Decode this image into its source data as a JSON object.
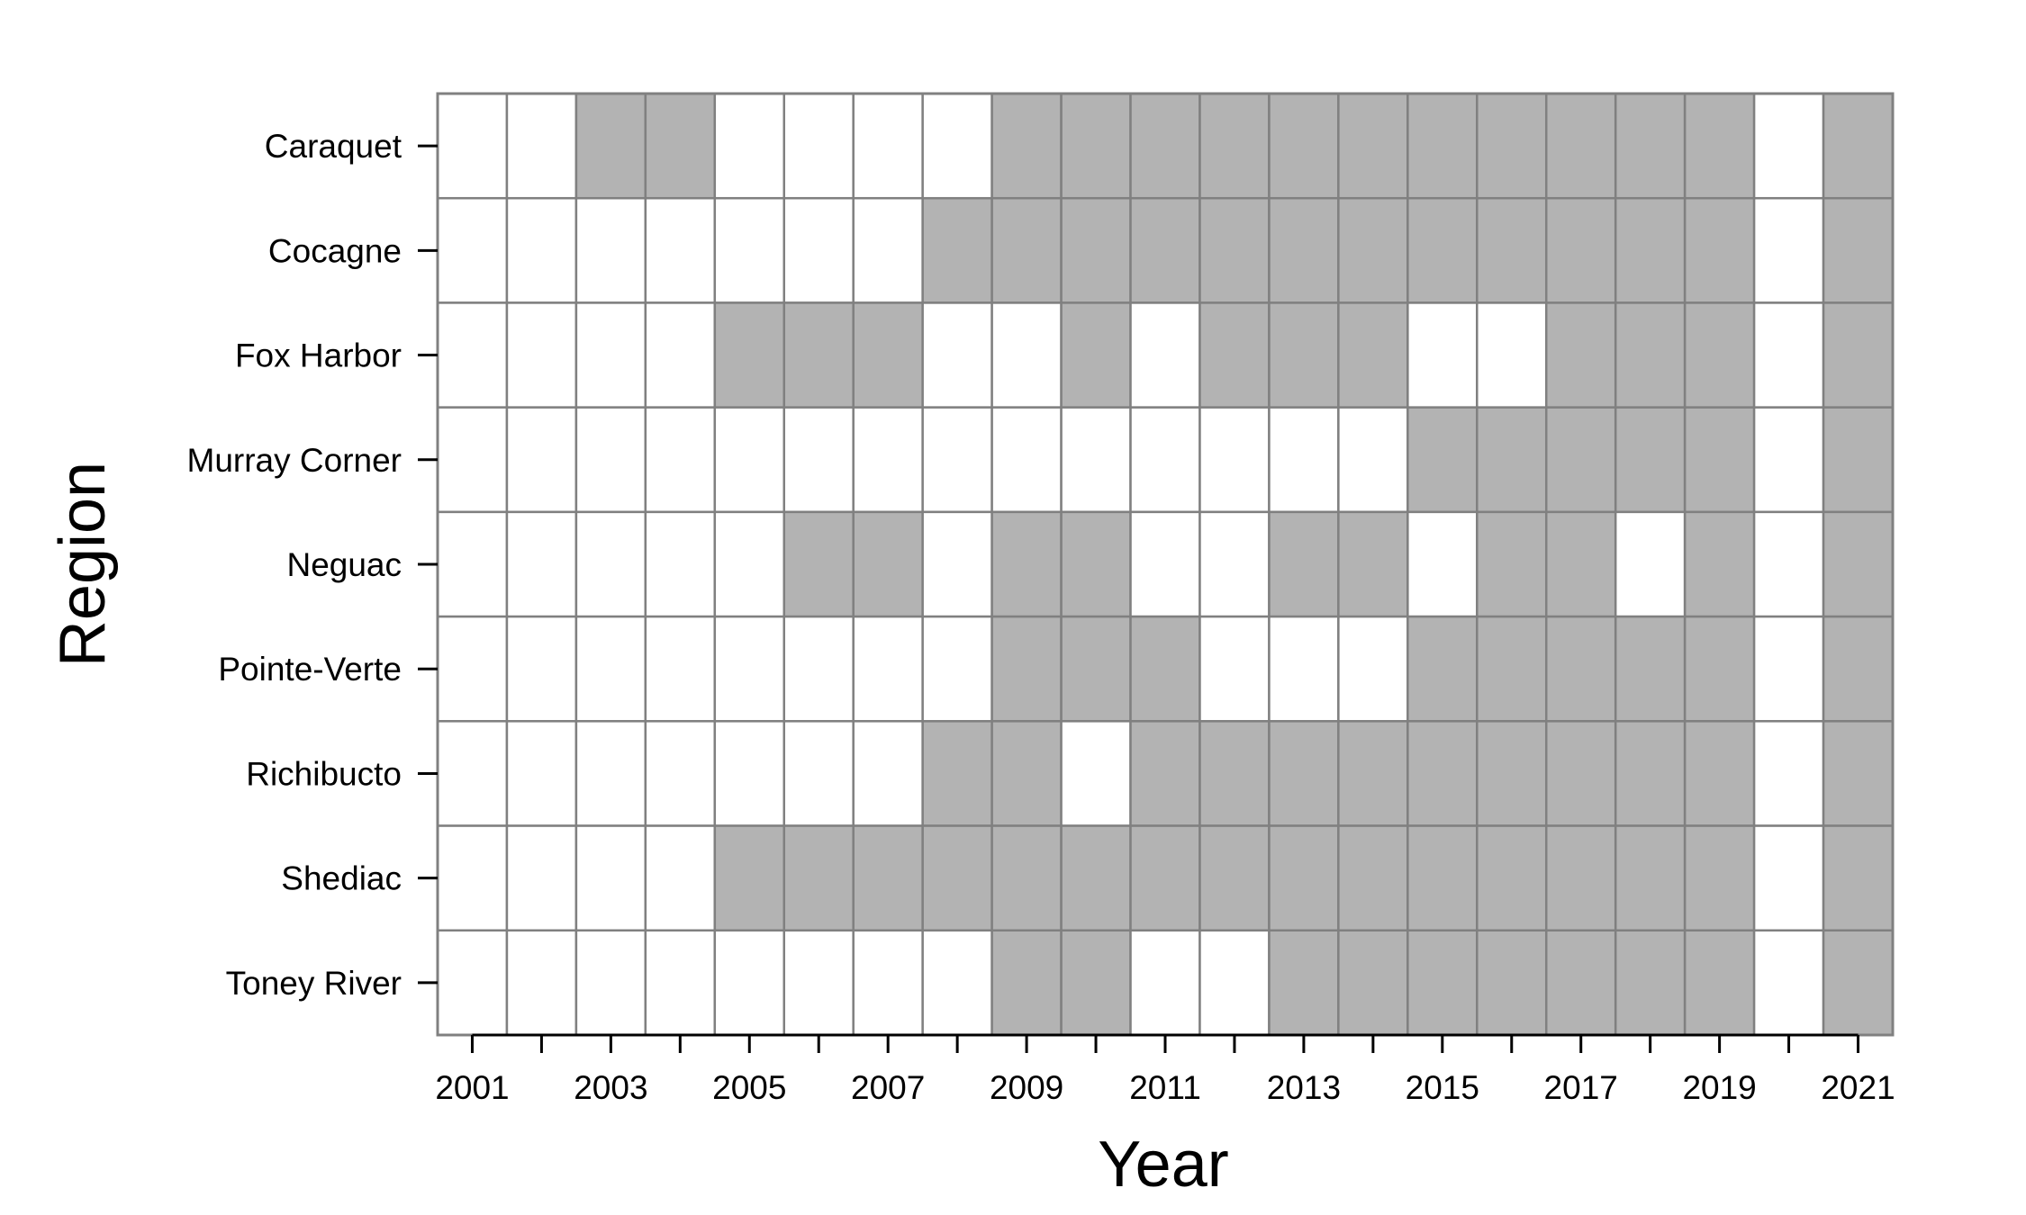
{
  "chart_data": {
    "type": "heatmap",
    "title": "",
    "xlabel": "Year",
    "ylabel": "Region",
    "x": [
      2001,
      2002,
      2003,
      2004,
      2005,
      2006,
      2007,
      2008,
      2009,
      2010,
      2011,
      2012,
      2013,
      2014,
      2015,
      2016,
      2017,
      2018,
      2019,
      2020,
      2021
    ],
    "x_tick_labels": [
      "2001",
      "2003",
      "2005",
      "2007",
      "2009",
      "2011",
      "2013",
      "2015",
      "2017",
      "2019",
      "2021"
    ],
    "y": [
      "Caraquet",
      "Cocagne",
      "Fox Harbor",
      "Murray Corner",
      "Neguac",
      "Pointe-Verte",
      "Richibucto",
      "Shediac",
      "Toney River"
    ],
    "values": [
      [
        0,
        0,
        1,
        1,
        0,
        0,
        0,
        0,
        1,
        1,
        1,
        1,
        1,
        1,
        1,
        1,
        1,
        1,
        1,
        0,
        1
      ],
      [
        0,
        0,
        0,
        0,
        0,
        0,
        0,
        1,
        1,
        1,
        1,
        1,
        1,
        1,
        1,
        1,
        1,
        1,
        1,
        0,
        1
      ],
      [
        0,
        0,
        0,
        0,
        1,
        1,
        1,
        0,
        0,
        1,
        0,
        1,
        1,
        1,
        0,
        0,
        1,
        1,
        1,
        0,
        1
      ],
      [
        0,
        0,
        0,
        0,
        0,
        0,
        0,
        0,
        0,
        0,
        0,
        0,
        0,
        0,
        1,
        1,
        1,
        1,
        1,
        0,
        1
      ],
      [
        0,
        0,
        0,
        0,
        0,
        1,
        1,
        0,
        1,
        1,
        0,
        0,
        1,
        1,
        0,
        1,
        1,
        0,
        1,
        0,
        1
      ],
      [
        0,
        0,
        0,
        0,
        0,
        0,
        0,
        0,
        1,
        1,
        1,
        0,
        0,
        0,
        1,
        1,
        1,
        1,
        1,
        0,
        1
      ],
      [
        0,
        0,
        0,
        0,
        0,
        0,
        0,
        1,
        1,
        0,
        1,
        1,
        1,
        1,
        1,
        1,
        1,
        1,
        1,
        0,
        1
      ],
      [
        0,
        0,
        0,
        0,
        1,
        1,
        1,
        1,
        1,
        1,
        1,
        1,
        1,
        1,
        1,
        1,
        1,
        1,
        1,
        0,
        1
      ],
      [
        0,
        0,
        0,
        0,
        0,
        0,
        0,
        0,
        1,
        1,
        0,
        0,
        1,
        1,
        1,
        1,
        1,
        1,
        1,
        0,
        1
      ]
    ],
    "colors": {
      "filled": "#b3b3b3",
      "empty": "#ffffff",
      "grid": "#808080"
    }
  }
}
